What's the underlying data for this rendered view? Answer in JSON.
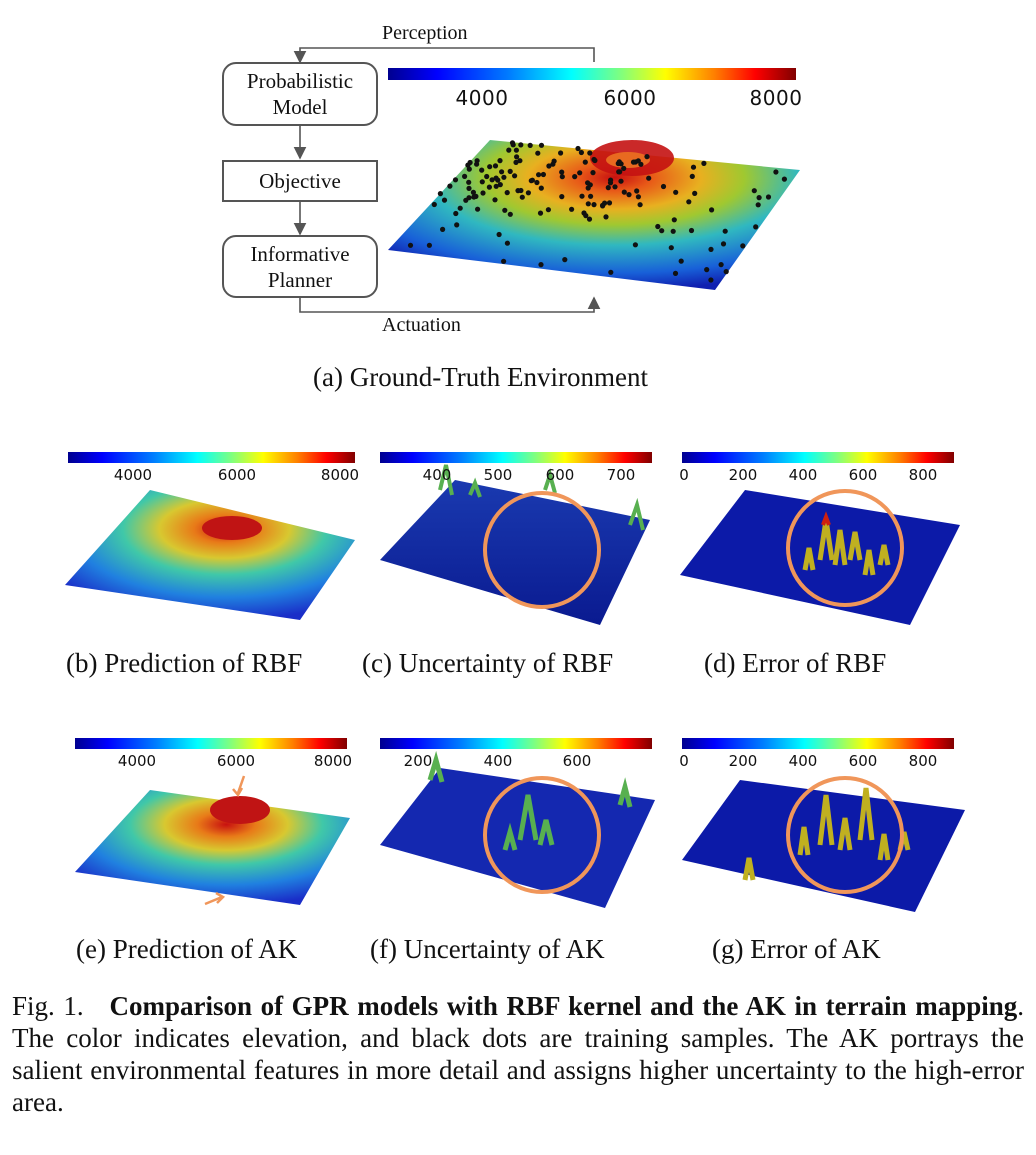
{
  "diagram": {
    "nodes": [
      {
        "id": "model",
        "label_line1": "Probabilistic",
        "label_line2": "Model"
      },
      {
        "id": "objective",
        "label": "Objective"
      },
      {
        "id": "planner",
        "label_line1": "Informative",
        "label_line2": "Planner"
      }
    ],
    "edges": {
      "perception": "Perception",
      "actuation": "Actuation"
    }
  },
  "panels": {
    "a": {
      "caption": "(a) Ground-Truth Environment",
      "ticks": [
        "4000",
        "6000",
        "8000"
      ]
    },
    "b": {
      "caption": "(b) Prediction of RBF",
      "ticks": [
        "4000",
        "6000",
        "8000"
      ]
    },
    "c": {
      "caption": "(c) Uncertainty of RBF",
      "ticks": [
        "400",
        "500",
        "600",
        "700"
      ]
    },
    "d": {
      "caption": "(d) Error of RBF",
      "ticks": [
        "0",
        "200",
        "400",
        "600",
        "800"
      ]
    },
    "e": {
      "caption": "(e) Prediction of AK",
      "ticks": [
        "4000",
        "6000",
        "8000"
      ]
    },
    "f": {
      "caption": "(f) Uncertainty of AK",
      "ticks": [
        "200",
        "400",
        "600"
      ]
    },
    "g": {
      "caption": "(g) Error of AK",
      "ticks": [
        "0",
        "200",
        "400",
        "600",
        "800"
      ]
    }
  },
  "figure_caption": {
    "label": "Fig. 1.",
    "bold_text": "Comparison of GPR models with RBF kernel and the AK in terrain mapping",
    "rest_text": ". The color indicates elevation, and black dots are training samples. The AK portrays the salient environmental features in more detail and assigns higher uncertainty to the high-error area."
  },
  "colors": {
    "circle": "#f0965a",
    "arrow": "#f0965a",
    "line": "#555555"
  }
}
